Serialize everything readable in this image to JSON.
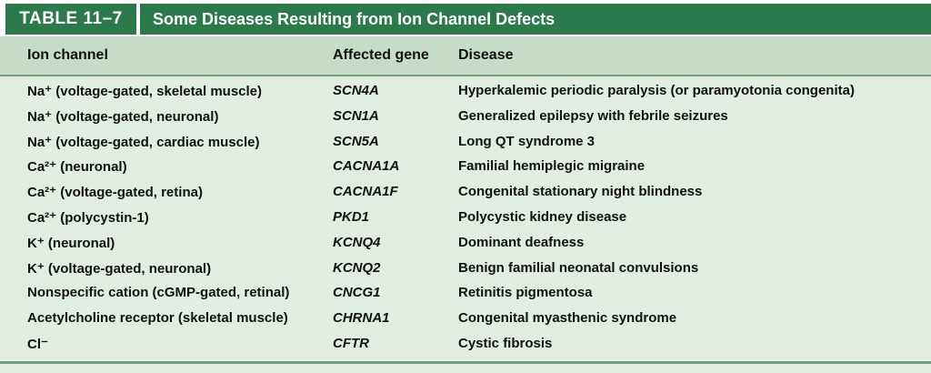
{
  "table": {
    "label": "TABLE 11–7",
    "title": "Some Diseases Resulting from Ion Channel Defects",
    "headers": [
      "Ion channel",
      "Affected gene",
      "Disease"
    ],
    "rows": [
      {
        "channel": "Na⁺ (voltage-gated, skeletal muscle)",
        "gene": "SCN4A",
        "disease": "Hyperkalemic periodic paralysis (or paramyotonia congenita)"
      },
      {
        "channel": "Na⁺ (voltage-gated, neuronal)",
        "gene": "SCN1A",
        "disease": "Generalized epilepsy with febrile seizures"
      },
      {
        "channel": "Na⁺ (voltage-gated, cardiac muscle)",
        "gene": "SCN5A",
        "disease": "Long QT syndrome 3"
      },
      {
        "channel": "Ca²⁺ (neuronal)",
        "gene": "CACNA1A",
        "disease": "Familial hemiplegic migraine"
      },
      {
        "channel": "Ca²⁺ (voltage-gated, retina)",
        "gene": "CACNA1F",
        "disease": "Congenital stationary night blindness"
      },
      {
        "channel": "Ca²⁺ (polycystin-1)",
        "gene": "PKD1",
        "disease": "Polycystic kidney disease"
      },
      {
        "channel": "K⁺ (neuronal)",
        "gene": "KCNQ4",
        "disease": "Dominant deafness"
      },
      {
        "channel": "K⁺ (voltage-gated, neuronal)",
        "gene": "KCNQ2",
        "disease": "Benign familial neonatal convulsions"
      },
      {
        "channel": "Nonspecific cation (cGMP-gated, retinal)",
        "gene": "CNCG1",
        "disease": "Retinitis pigmentosa"
      },
      {
        "channel": "Acetylcholine receptor (skeletal muscle)",
        "gene": "CHRNA1",
        "disease": "Congenital myasthenic syndrome"
      },
      {
        "channel": "Cl⁻",
        "gene": "CFTR",
        "disease": "Cystic fibrosis"
      }
    ]
  },
  "colors": {
    "title_bg": "#2a7a4c",
    "header_bg": "#c7dcc8",
    "body_bg": "#e2ede1",
    "rule": "#6ba17c"
  }
}
